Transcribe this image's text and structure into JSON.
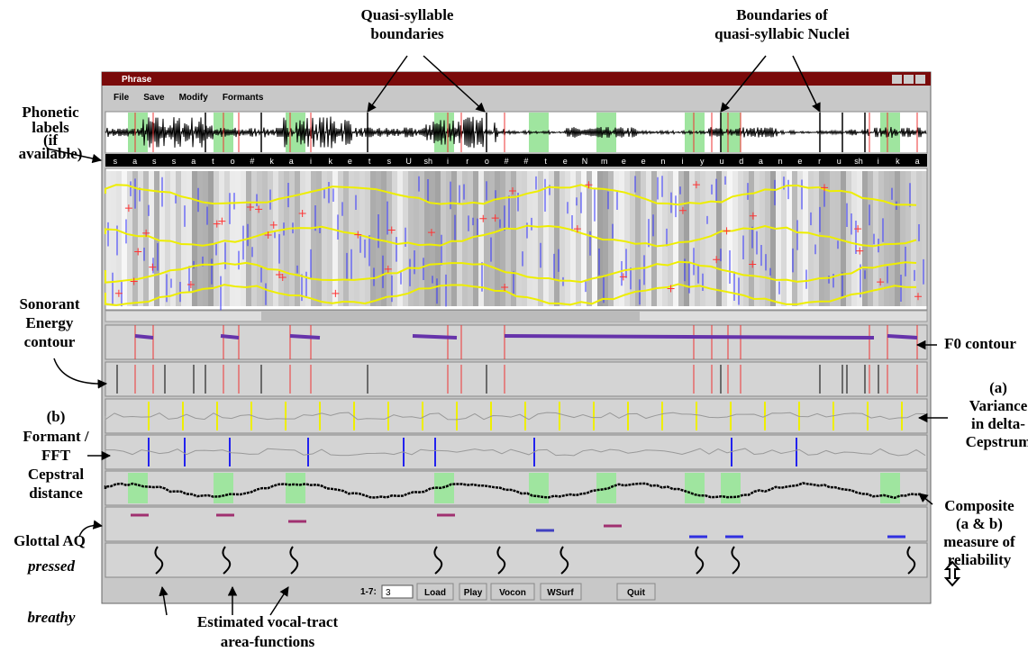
{
  "window": {
    "title": "Phrase",
    "menu": [
      "File",
      "Save",
      "Modify",
      "Formants"
    ],
    "phonetic_labels": [
      "s",
      "a",
      "s",
      "s",
      "a",
      "t",
      "o",
      "#",
      "k",
      "a",
      "i",
      "k",
      "e",
      "t",
      "s",
      "U",
      "sh",
      "i",
      "r",
      "o",
      "#",
      "#",
      "t",
      "e",
      "N",
      "m",
      "e",
      "e",
      "n",
      "i",
      "y",
      "u",
      "d",
      "a",
      "n",
      "e",
      "r",
      "u",
      "sh",
      "i",
      "k",
      "a"
    ],
    "controls": {
      "range_label": "1-7:",
      "range_value": "3",
      "buttons": [
        "Load",
        "Play",
        "Vocon",
        "WSurf",
        "Quit"
      ]
    }
  },
  "annotations": {
    "quasi_syllable_boundaries": [
      "Quasi-syllable",
      "boundaries"
    ],
    "nuclei_boundaries": [
      "Boundaries of",
      "quasi-syllabic Nuclei"
    ],
    "phonetic_labels": [
      "Phonetic",
      "labels",
      "(if",
      "available)"
    ],
    "sonorant_energy": [
      "Sonorant",
      "Energy",
      "contour"
    ],
    "f0_contour": [
      "F0 contour"
    ],
    "variance": [
      "(a)",
      "Variance",
      "in delta-",
      "Cepstrum"
    ],
    "formant": [
      "(b)",
      "Formant /",
      "FFT",
      "Cepstral",
      "distance"
    ],
    "composite": [
      "Composite",
      "(a & b)",
      "measure of",
      "reliability"
    ],
    "glottal": [
      "Glottal AQ"
    ],
    "pressed": "pressed",
    "breathy": "breathy",
    "area_functions": [
      "Estimated vocal-tract",
      "area-functions"
    ]
  }
}
